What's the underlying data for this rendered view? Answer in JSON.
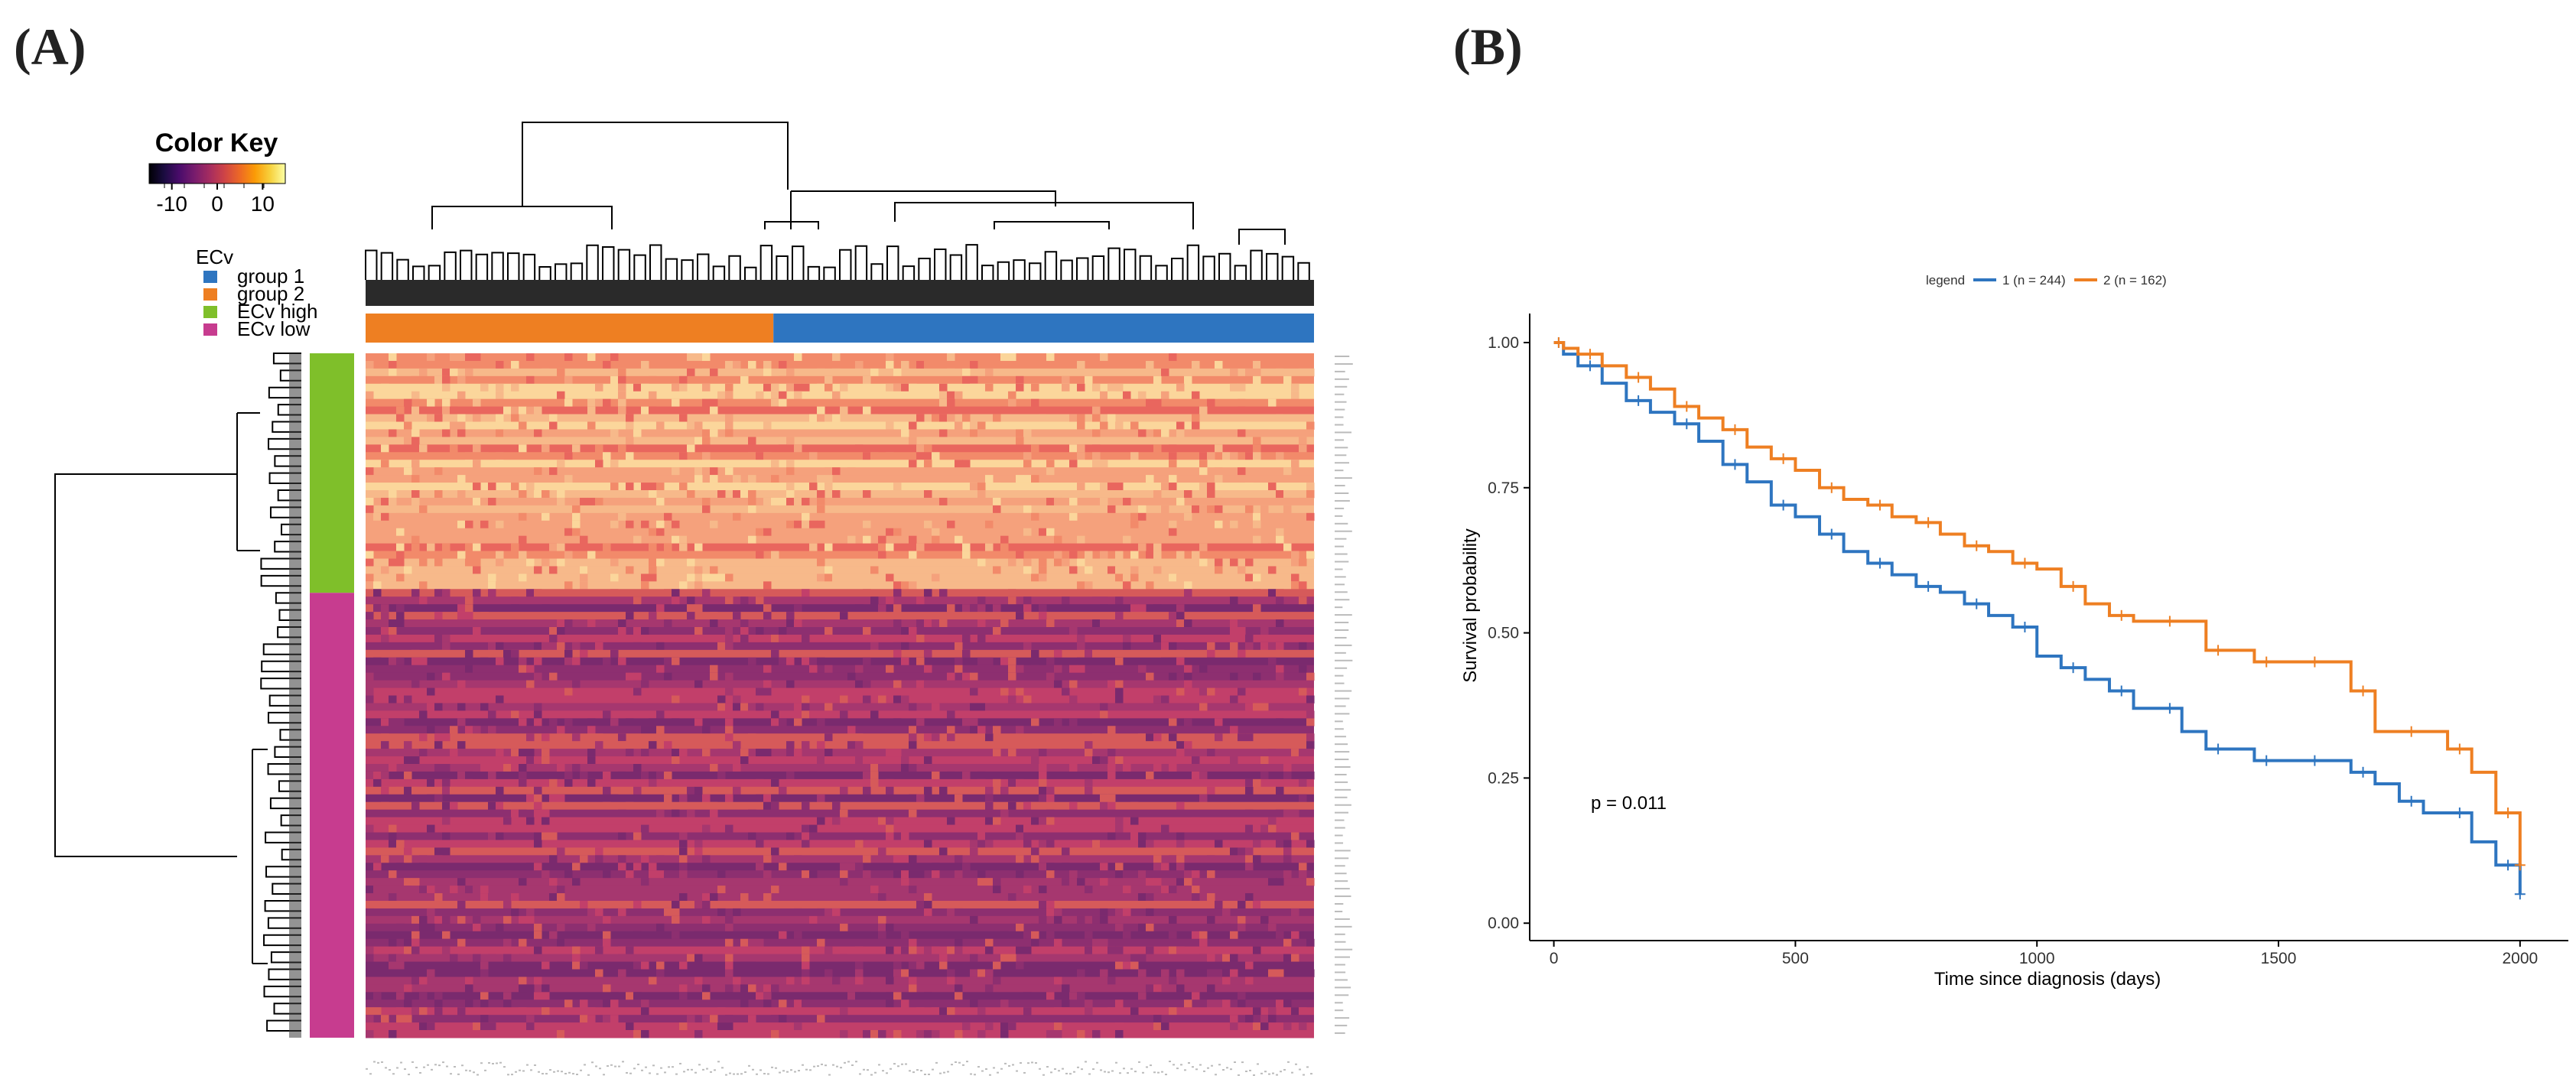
{
  "panels": {
    "a": "(A)",
    "b": "(B)"
  },
  "color_key": {
    "title": "Color Key",
    "ticks": [
      "-10",
      "0",
      "10"
    ],
    "tick_values": [
      -10,
      0,
      10
    ],
    "range": [
      -15,
      15
    ],
    "palette": [
      "#000004",
      "#1b0c41",
      "#4a0c6b",
      "#781c6d",
      "#a52c60",
      "#cf4446",
      "#ed6925",
      "#fb9b06",
      "#f7d13d",
      "#fcffa4"
    ]
  },
  "ecv_legend": {
    "title": "ECv",
    "items": [
      {
        "label": "group 1",
        "color": "#2e75c0"
      },
      {
        "label": "group 2",
        "color": "#ee7f22"
      },
      {
        "label": "ECv high",
        "color": "#7fbf2a"
      },
      {
        "label": "ECv low",
        "color": "#c73c8f"
      }
    ]
  },
  "heatmap": {
    "groups_bar": [
      {
        "label": "group 2",
        "fraction": 0.43,
        "color": "#ee7f22"
      },
      {
        "label": "group 1",
        "fraction": 0.57,
        "color": "#2e75c0"
      }
    ],
    "row_groups": [
      {
        "label": "ECv high",
        "fraction": 0.35,
        "color": "#7fbf2a"
      },
      {
        "label": "ECv low",
        "fraction": 0.65,
        "color": "#c73c8f"
      }
    ],
    "high_block_colors": [
      "#f28a6a",
      "#f5a17c",
      "#f7b98a",
      "#fbd69b",
      "#e9665e"
    ],
    "low_block_colors": [
      "#c23f6a",
      "#a6376f",
      "#8d2f70",
      "#7a2a6e",
      "#d65a5a"
    ]
  },
  "chart_data": {
    "type": "line",
    "title": "",
    "xlabel": "Time since diagnosis (days)",
    "ylabel": "Survival probability",
    "xlim": [
      -50,
      2100
    ],
    "ylim": [
      -0.03,
      1.05
    ],
    "xticks": [
      0,
      500,
      1000,
      1500,
      2000
    ],
    "yticks": [
      0.0,
      0.25,
      0.5,
      0.75,
      1.0
    ],
    "ytick_labels": [
      "0.00",
      "0.25",
      "0.50",
      "0.75",
      "1.00"
    ],
    "legend_title": "legend",
    "legend_position": "top",
    "annotation": "p = 0.011",
    "series": [
      {
        "name": "1 (n = 244)",
        "color": "#2e75c0",
        "x": [
          0,
          20,
          50,
          100,
          150,
          200,
          250,
          300,
          350,
          400,
          450,
          500,
          550,
          600,
          650,
          700,
          750,
          800,
          850,
          900,
          950,
          1000,
          1050,
          1100,
          1150,
          1200,
          1250,
          1300,
          1350,
          1400,
          1450,
          1500,
          1550,
          1600,
          1650,
          1700,
          1750,
          1800,
          1850,
          1900,
          1950,
          2000
        ],
        "y": [
          1.0,
          0.98,
          0.96,
          0.93,
          0.9,
          0.88,
          0.86,
          0.83,
          0.79,
          0.76,
          0.72,
          0.7,
          0.67,
          0.64,
          0.62,
          0.6,
          0.58,
          0.57,
          0.55,
          0.53,
          0.51,
          0.46,
          0.44,
          0.42,
          0.4,
          0.37,
          0.37,
          0.33,
          0.3,
          0.3,
          0.28,
          0.28,
          0.28,
          0.28,
          0.26,
          0.24,
          0.21,
          0.19,
          0.19,
          0.14,
          0.1,
          0.05
        ]
      },
      {
        "name": "2 (n = 162)",
        "color": "#ee7f22",
        "x": [
          0,
          20,
          50,
          100,
          150,
          200,
          250,
          300,
          350,
          400,
          450,
          500,
          550,
          600,
          650,
          700,
          750,
          800,
          850,
          900,
          950,
          1000,
          1050,
          1100,
          1150,
          1200,
          1250,
          1300,
          1350,
          1400,
          1450,
          1500,
          1550,
          1600,
          1650,
          1700,
          1750,
          1800,
          1850,
          1900,
          1950,
          2000
        ],
        "y": [
          1.0,
          0.99,
          0.98,
          0.96,
          0.94,
          0.92,
          0.89,
          0.87,
          0.85,
          0.82,
          0.8,
          0.78,
          0.75,
          0.73,
          0.72,
          0.7,
          0.69,
          0.67,
          0.65,
          0.64,
          0.62,
          0.61,
          0.58,
          0.55,
          0.53,
          0.52,
          0.52,
          0.52,
          0.47,
          0.47,
          0.45,
          0.45,
          0.45,
          0.45,
          0.4,
          0.33,
          0.33,
          0.33,
          0.3,
          0.26,
          0.19,
          0.1
        ]
      }
    ]
  }
}
